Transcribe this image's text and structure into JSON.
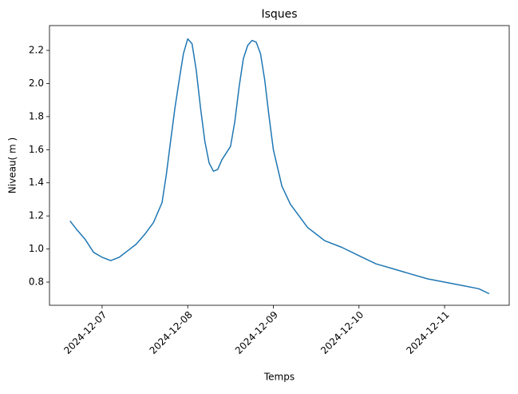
{
  "chart_data": {
    "type": "line",
    "title": "Isques",
    "x_label": "Temps",
    "y_label": "Niveau( m )",
    "x": [
      "2024-12-06T15:00",
      "2024-12-06T16:48",
      "2024-12-06T19:12",
      "2024-12-06T21:36",
      "2024-12-07T00:00",
      "2024-12-07T02:24",
      "2024-12-07T04:48",
      "2024-12-07T07:12",
      "2024-12-07T09:36",
      "2024-12-07T12:00",
      "2024-12-07T14:24",
      "2024-12-07T16:48",
      "2024-12-07T18:00",
      "2024-12-07T19:12",
      "2024-12-07T20:24",
      "2024-12-07T21:36",
      "2024-12-07T22:48",
      "2024-12-08T00:00",
      "2024-12-08T01:12",
      "2024-12-08T02:24",
      "2024-12-08T03:36",
      "2024-12-08T04:48",
      "2024-12-08T06:00",
      "2024-12-08T07:12",
      "2024-12-08T08:24",
      "2024-12-08T09:36",
      "2024-12-08T12:00",
      "2024-12-08T13:12",
      "2024-12-08T14:24",
      "2024-12-08T15:36",
      "2024-12-08T16:48",
      "2024-12-08T18:00",
      "2024-12-08T19:12",
      "2024-12-08T20:24",
      "2024-12-08T21:36",
      "2024-12-08T22:48",
      "2024-12-09T00:00",
      "2024-12-09T02:24",
      "2024-12-09T04:48",
      "2024-12-09T07:12",
      "2024-12-09T09:36",
      "2024-12-09T12:00",
      "2024-12-09T14:24",
      "2024-12-09T19:12",
      "2024-12-10T00:00",
      "2024-12-10T04:48",
      "2024-12-10T09:36",
      "2024-12-10T14:24",
      "2024-12-10T19:12",
      "2024-12-11T00:00",
      "2024-12-11T04:48",
      "2024-12-11T09:36",
      "2024-12-11T12:30"
    ],
    "series": [
      {
        "name": "Isques",
        "color": "#1f77b4",
        "values": [
          1.17,
          1.12,
          1.06,
          0.98,
          0.95,
          0.93,
          0.95,
          0.99,
          1.03,
          1.09,
          1.16,
          1.28,
          1.45,
          1.65,
          1.85,
          2.02,
          2.18,
          2.27,
          2.24,
          2.08,
          1.85,
          1.65,
          1.52,
          1.47,
          1.48,
          1.54,
          1.62,
          1.77,
          1.98,
          2.15,
          2.23,
          2.26,
          2.25,
          2.18,
          2.02,
          1.8,
          1.6,
          1.38,
          1.27,
          1.2,
          1.13,
          1.09,
          1.05,
          1.01,
          0.96,
          0.91,
          0.88,
          0.85,
          0.82,
          0.8,
          0.78,
          0.76,
          0.73
        ]
      }
    ],
    "xlim": [
      "2024-12-06T09:15",
      "2024-12-11T18:07"
    ],
    "xticks": [
      "2024-12-07",
      "2024-12-08",
      "2024-12-09",
      "2024-12-10",
      "2024-12-11"
    ],
    "ylim": [
      0.66,
      2.35
    ],
    "yticks": [
      0.8,
      {
        "value": 1.0,
        "label": "1.0"
      },
      1.2,
      1.4,
      1.6,
      1.8,
      {
        "value": 2.0,
        "label": "2.0"
      },
      2.2
    ]
  }
}
